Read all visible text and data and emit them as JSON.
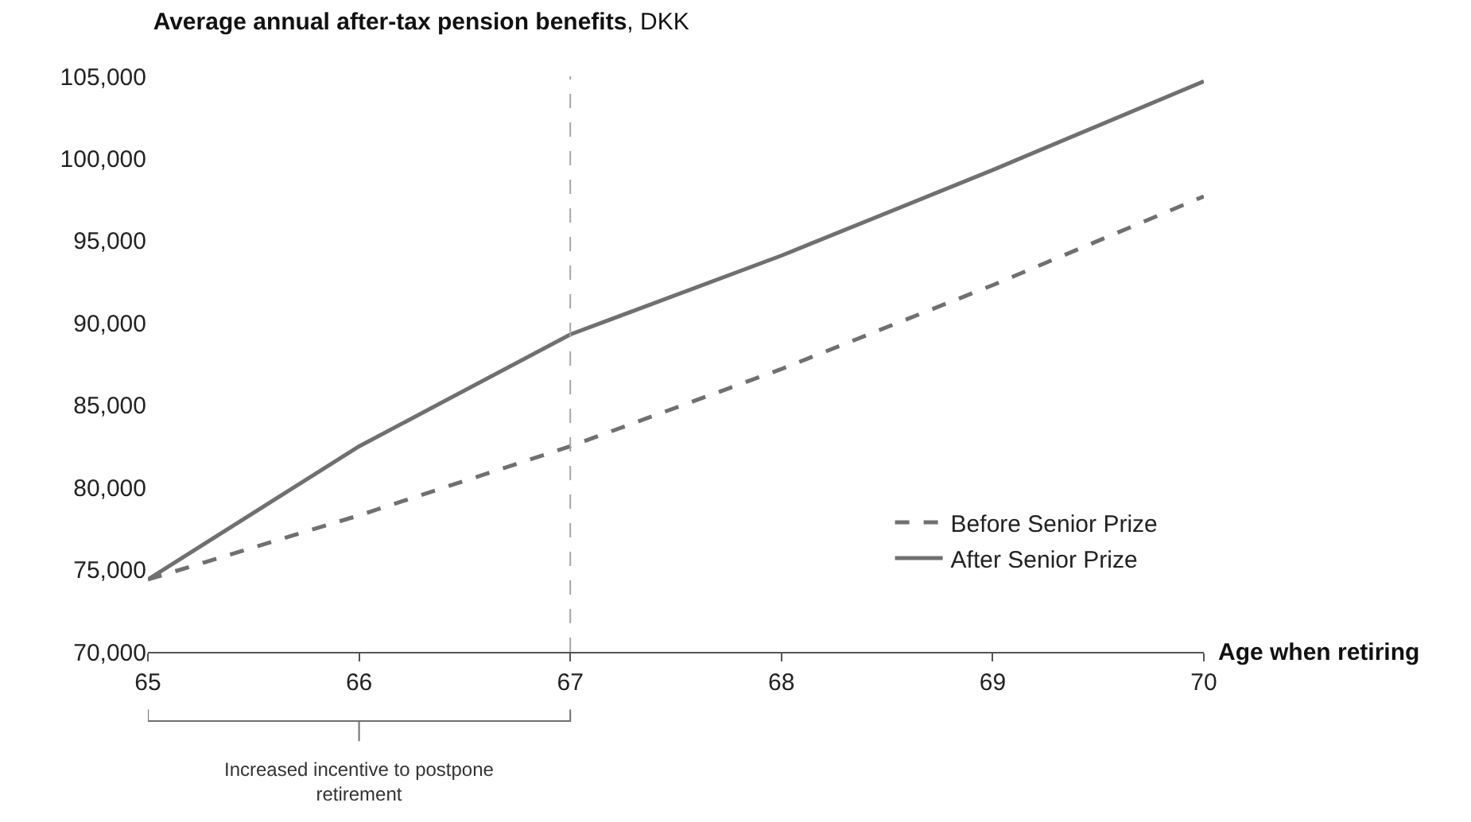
{
  "chart_data": {
    "type": "line",
    "title": "Average annual after-tax pension benefits, DKK",
    "xlabel": "Age when retiring",
    "x": [
      65,
      66,
      67,
      68,
      69,
      70
    ],
    "series": [
      {
        "name": "Before Senior Prize",
        "color": "#707070",
        "line_style": "dashed",
        "values": [
          74400,
          78300,
          82500,
          87200,
          92300,
          97700
        ]
      },
      {
        "name": "After Senior Prize",
        "color": "#707070",
        "line_style": "solid",
        "values": [
          74400,
          82500,
          89300,
          94100,
          99300,
          104700
        ]
      }
    ],
    "xlim": [
      65,
      70
    ],
    "xticks": [
      65,
      66,
      67,
      68,
      69,
      70
    ],
    "ylim": [
      70000,
      105000
    ],
    "yticks": [
      {
        "value": 70000,
        "label": "70,000"
      },
      {
        "value": 75000,
        "label": "75,000"
      },
      {
        "value": 80000,
        "label": "80,000"
      },
      {
        "value": 85000,
        "label": "85,000"
      },
      {
        "value": 90000,
        "label": "90,000"
      },
      {
        "value": 95000,
        "label": "95,000"
      },
      {
        "value": 100000,
        "label": "100,000"
      },
      {
        "value": 105000,
        "label": "105,000"
      }
    ],
    "ref_lines": [
      {
        "axis": "x",
        "value": 67,
        "color": "#a6a6a6",
        "line_style": "dashed"
      }
    ],
    "annotations": [
      "Increased incentive to postpone retirement"
    ],
    "grid": false,
    "legend": "bottom right",
    "marker": "none"
  }
}
